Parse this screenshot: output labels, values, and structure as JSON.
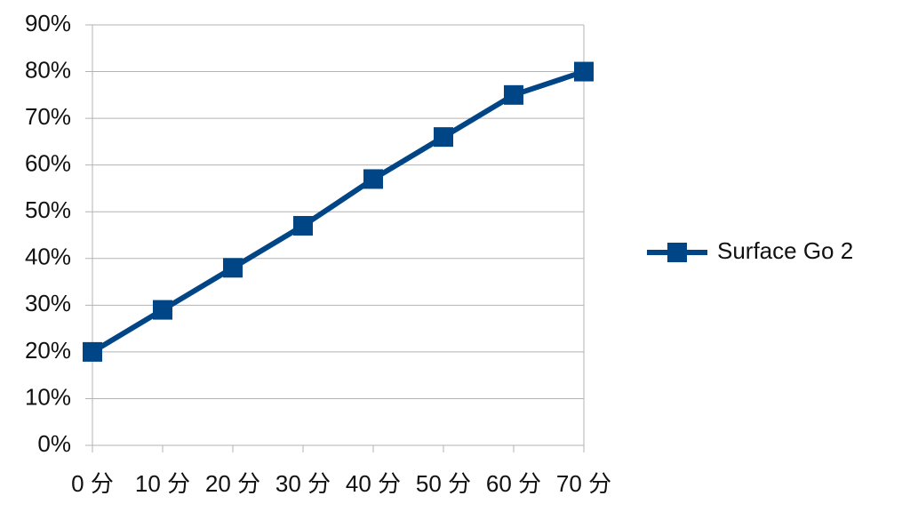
{
  "chart_data": {
    "type": "line",
    "categories": [
      "0 分",
      "10 分",
      "20 分",
      "30 分",
      "40 分",
      "50 分",
      "60 分",
      "70 分"
    ],
    "series": [
      {
        "name": "Surface Go 2",
        "color": "#004586",
        "values": [
          20,
          29,
          38,
          47,
          57,
          66,
          75,
          80
        ]
      }
    ],
    "ylim": [
      0,
      90
    ],
    "yticks": [
      {
        "value": 0,
        "label": "0%"
      },
      {
        "value": 10,
        "label": "10%"
      },
      {
        "value": 20,
        "label": "20%"
      },
      {
        "value": 30,
        "label": "30%"
      },
      {
        "value": 40,
        "label": "40%"
      },
      {
        "value": 50,
        "label": "50%"
      },
      {
        "value": 60,
        "label": "60%"
      },
      {
        "value": 70,
        "label": "70%"
      },
      {
        "value": 80,
        "label": "80%"
      },
      {
        "value": 90,
        "label": "90%"
      }
    ],
    "grid": true,
    "legend": "right"
  }
}
